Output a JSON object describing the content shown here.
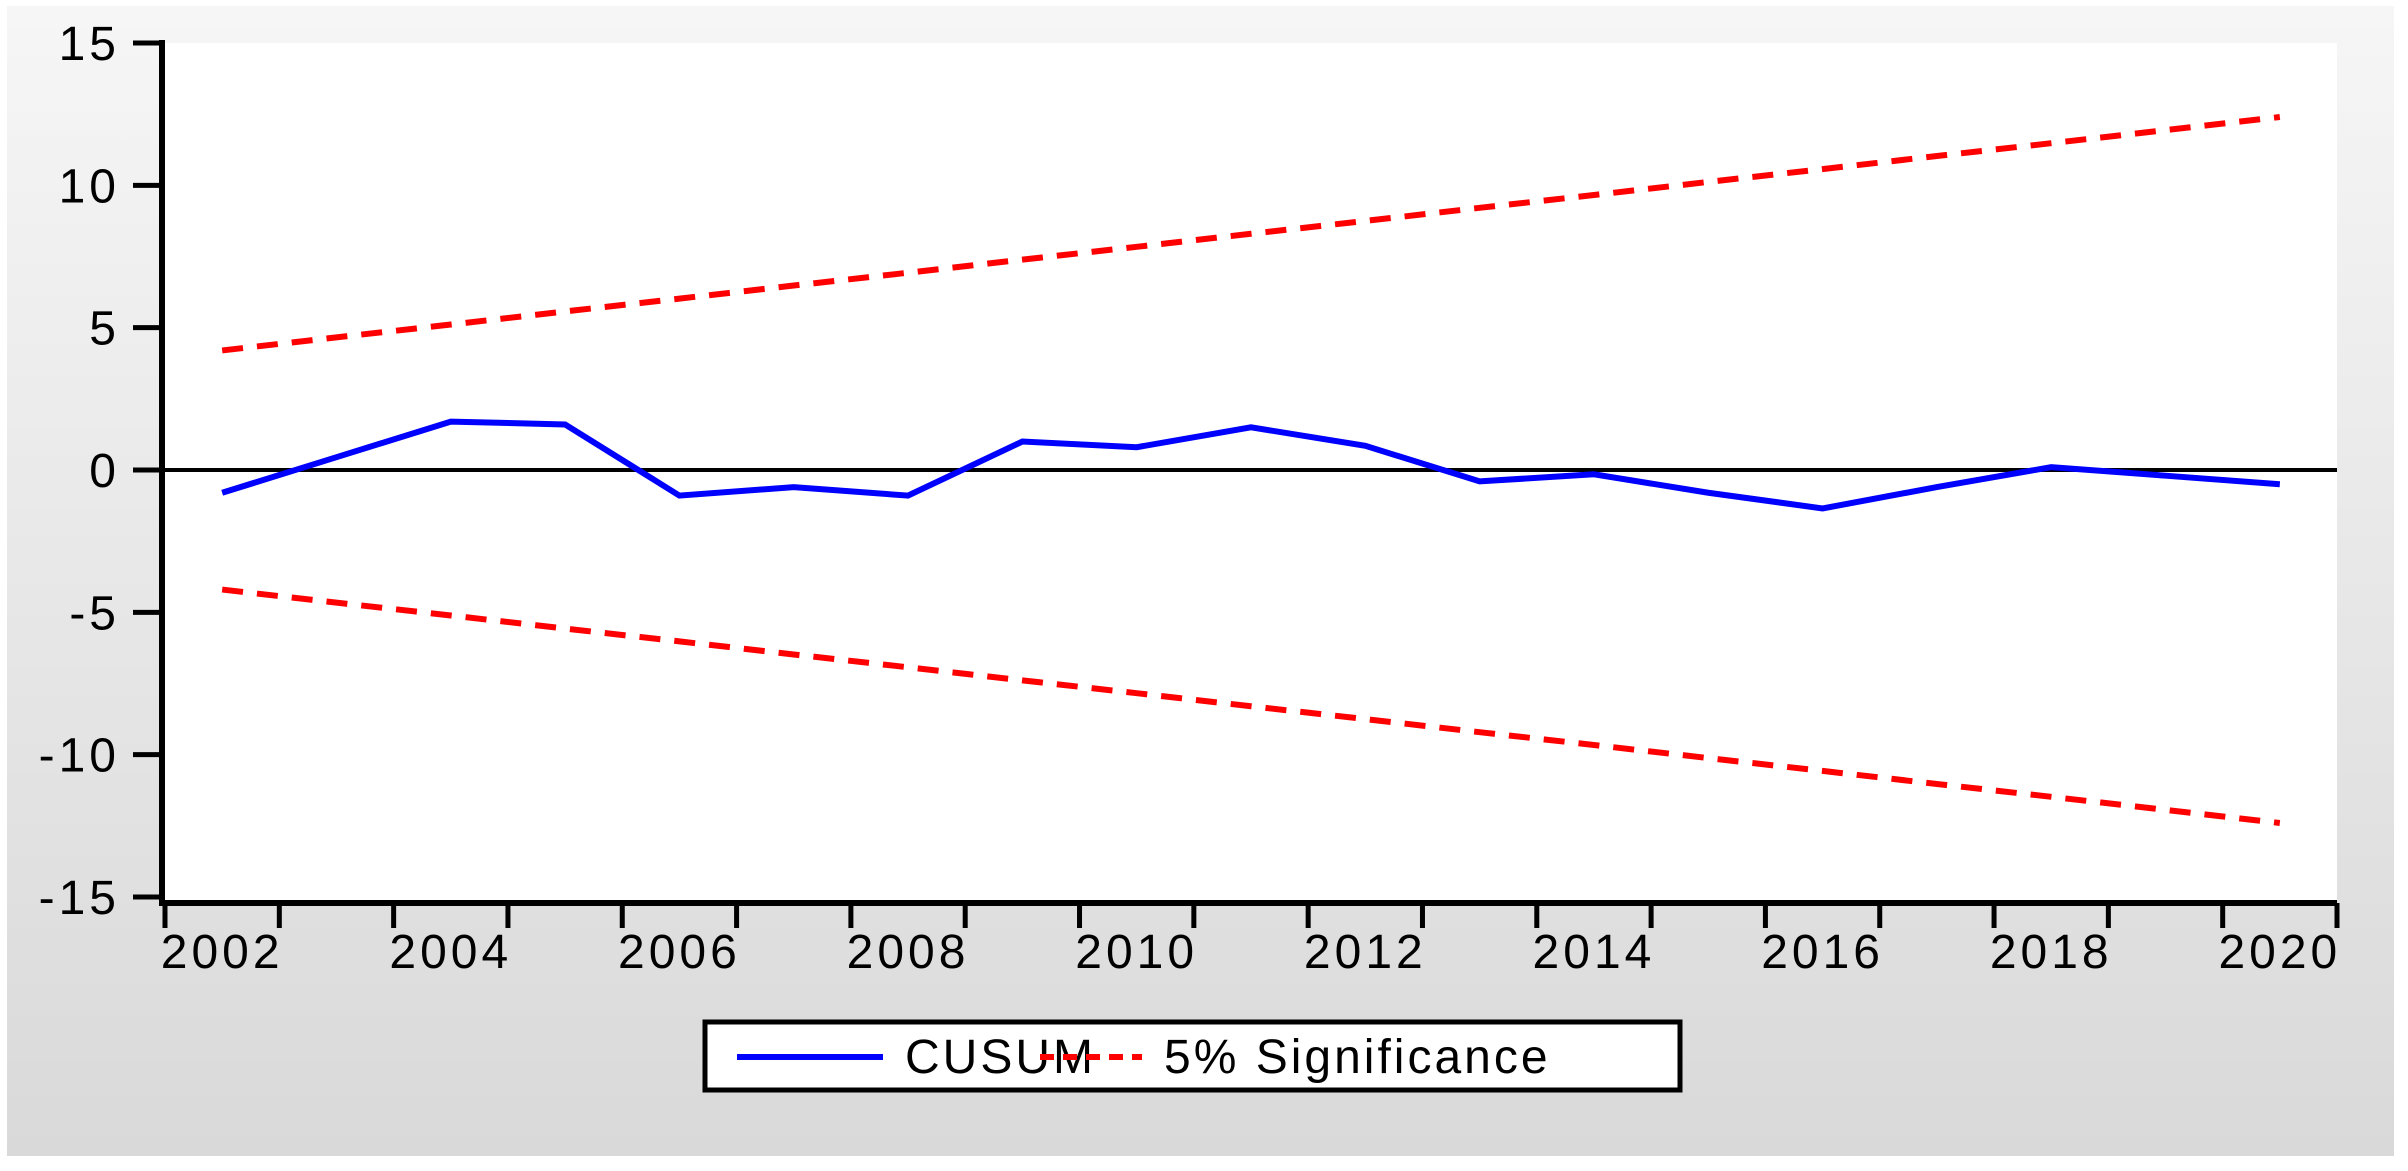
{
  "chart_data": {
    "type": "line",
    "title": "",
    "x": [
      2002,
      2003,
      2004,
      2005,
      2006,
      2007,
      2008,
      2009,
      2010,
      2011,
      2012,
      2013,
      2014,
      2015,
      2016,
      2017,
      2018,
      2019,
      2020
    ],
    "series": [
      {
        "name": "CUSUM",
        "color": "#0000ff",
        "style": "solid",
        "values": [
          -0.8,
          0.45,
          1.7,
          1.6,
          -0.9,
          -0.6,
          -0.9,
          1.0,
          0.8,
          1.5,
          0.85,
          -0.4,
          -0.15,
          -0.8,
          -1.35,
          -0.6,
          0.1,
          -0.2,
          -0.5
        ]
      },
      {
        "name": "5% Significance (upper bound)",
        "color": "#ff0000",
        "style": "dashed",
        "values": [
          4.2,
          4.66,
          5.11,
          5.57,
          6.02,
          6.48,
          6.93,
          7.39,
          7.84,
          8.3,
          8.75,
          9.21,
          9.66,
          10.12,
          10.57,
          11.03,
          11.48,
          11.94,
          12.4
        ]
      },
      {
        "name": "5% Significance (lower bound)",
        "color": "#ff0000",
        "style": "dashed",
        "values": [
          -4.2,
          -4.66,
          -5.11,
          -5.57,
          -6.02,
          -6.48,
          -6.93,
          -7.39,
          -7.84,
          -8.3,
          -8.75,
          -9.21,
          -9.66,
          -10.12,
          -10.57,
          -11.03,
          -11.48,
          -11.94,
          -12.4
        ]
      }
    ],
    "x_tick_labels": [
      "2002",
      "2004",
      "2006",
      "2008",
      "2010",
      "2012",
      "2014",
      "2016",
      "2018",
      "2020"
    ],
    "x_tick_label_years": [
      2002,
      2004,
      2006,
      2008,
      2010,
      2012,
      2014,
      2016,
      2018,
      2020
    ],
    "y_tick_labels": [
      "15",
      "10",
      "5",
      "0",
      "-5",
      "-10",
      "-15"
    ],
    "y_ticks": [
      15,
      10,
      5,
      0,
      -5,
      -10,
      -15
    ],
    "ylim": [
      -15.2,
      15
    ],
    "xlim_years": [
      2002,
      2020
    ],
    "zero_line": 0,
    "grid": false,
    "legend_position": "bottom-center",
    "legend": [
      {
        "label": "CUSUM",
        "color": "#0000ff",
        "style": "solid"
      },
      {
        "label": "5% Significance",
        "color": "#ff0000",
        "style": "dashed"
      }
    ]
  },
  "colors": {
    "axis": "#000000",
    "tick_text": "#000000",
    "plot_background": "#ffffff",
    "canvas_top": "#f6f6f6",
    "canvas_bottom": "#d9d9d9",
    "cusum_line": "#0000ff",
    "significance_line": "#ff0000",
    "legend_border": "#000000",
    "legend_background": "#ffffff"
  }
}
